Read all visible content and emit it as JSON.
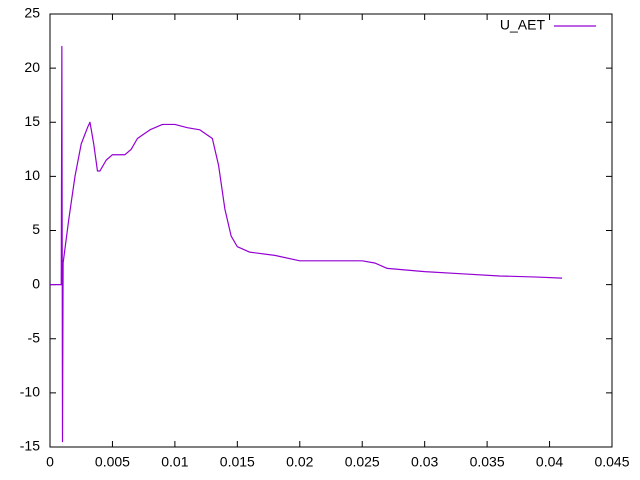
{
  "chart_data": {
    "type": "line",
    "x": [
      0,
      0.0009,
      0.00095,
      0.001,
      0.00105,
      0.0015,
      0.002,
      0.0025,
      0.003,
      0.0032,
      0.0035,
      0.0038,
      0.004,
      0.0045,
      0.005,
      0.0055,
      0.006,
      0.0065,
      0.007,
      0.008,
      0.009,
      0.01,
      0.011,
      0.012,
      0.013,
      0.0135,
      0.014,
      0.0145,
      0.015,
      0.016,
      0.018,
      0.02,
      0.022,
      0.025,
      0.026,
      0.027,
      0.03,
      0.033,
      0.036,
      0.039,
      0.041
    ],
    "series": [
      {
        "name": "U_AET",
        "color": "#9400d3",
        "values": [
          0,
          0,
          22,
          -14.5,
          2,
          6,
          10,
          13,
          14.5,
          15,
          13,
          10.5,
          10.5,
          11.5,
          12,
          12,
          12,
          12.5,
          13.5,
          14.3,
          14.8,
          14.8,
          14.5,
          14.3,
          13.5,
          11,
          7,
          4.5,
          3.5,
          3,
          2.7,
          2.2,
          2.2,
          2.2,
          2,
          1.5,
          1.2,
          1,
          0.8,
          0.7,
          0.6
        ]
      }
    ],
    "xlim": [
      0,
      0.045
    ],
    "xticks": [
      0,
      0.005,
      0.01,
      0.015,
      0.02,
      0.025,
      0.03,
      0.035,
      0.04,
      0.045
    ],
    "ylim": [
      -15,
      25
    ],
    "yticks": [
      -15,
      -10,
      -5,
      0,
      5,
      10,
      15,
      20,
      25
    ],
    "legend": "top-right",
    "grid": false
  }
}
